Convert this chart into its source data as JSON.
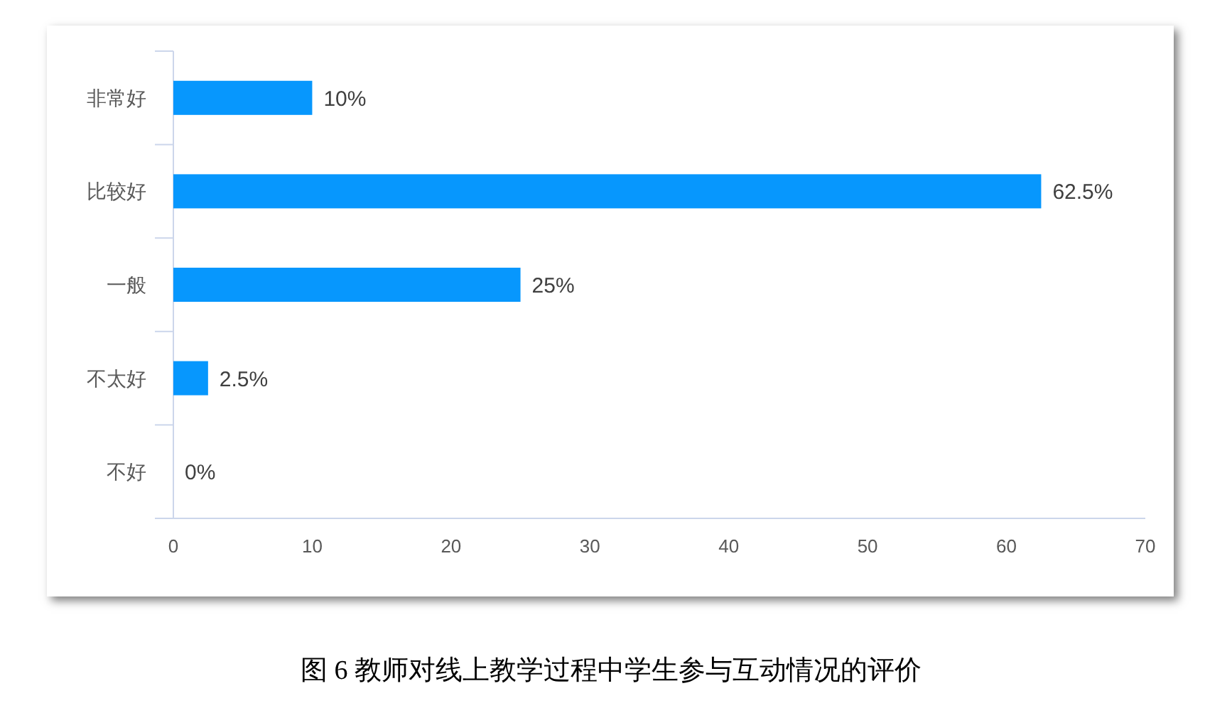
{
  "chart_data": {
    "type": "bar",
    "orientation": "horizontal",
    "categories": [
      "非常好",
      "比较好",
      "一般",
      "不太好",
      "不好"
    ],
    "values": [
      10,
      62.5,
      25,
      2.5,
      0
    ],
    "color": "#0797fd",
    "value_labels": [
      "10%",
      "62.5%",
      "25%",
      "2.5%",
      "0%"
    ],
    "xlim": [
      0,
      70
    ],
    "xticks": [
      0,
      10,
      20,
      30,
      40,
      50,
      60,
      70
    ],
    "annotations": [
      "图 6 教师对线上教学过程中学生参与互动情况的评价"
    ]
  }
}
